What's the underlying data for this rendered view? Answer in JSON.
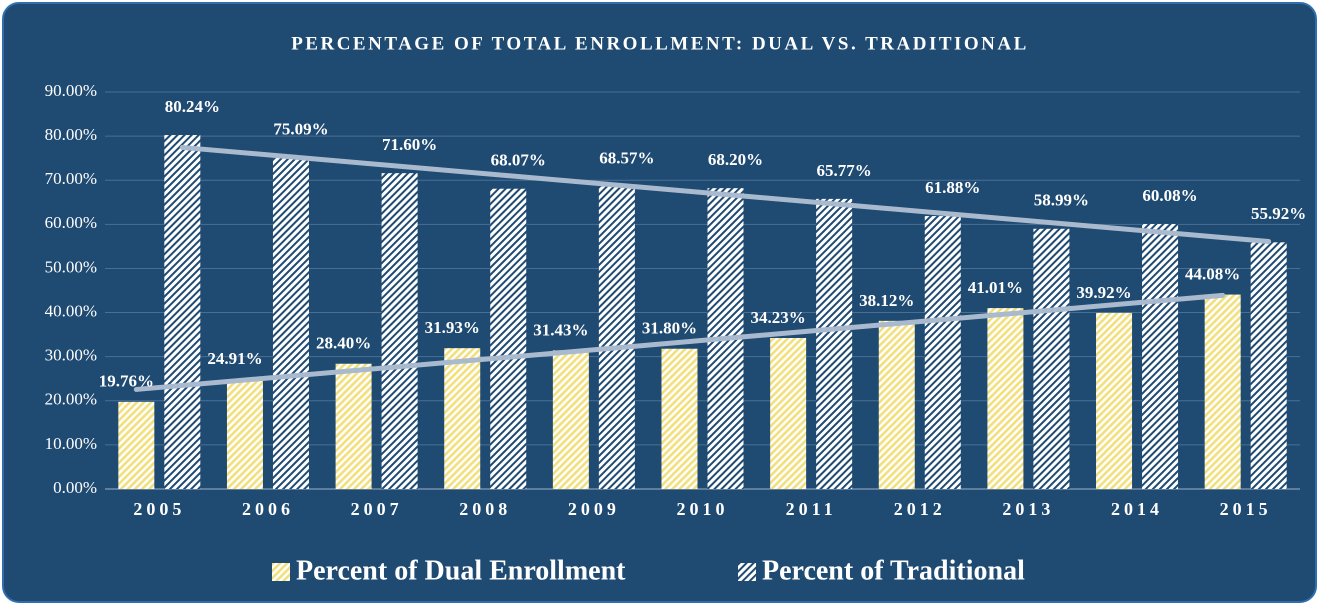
{
  "chart_data": {
    "type": "bar",
    "title": "PERCENTAGE OF TOTAL ENROLLMENT: DUAL VS. TRADITIONAL",
    "categories": [
      "2005",
      "2006",
      "2007",
      "2008",
      "2009",
      "2010",
      "2011",
      "2012",
      "2013",
      "2014",
      "2015"
    ],
    "series": [
      {
        "name": "Percent of Dual Enrollment",
        "color": "#f2df7e",
        "values": [
          19.76,
          24.91,
          28.4,
          31.93,
          31.43,
          31.8,
          34.23,
          38.12,
          41.01,
          39.92,
          44.08
        ],
        "value_labels": [
          "19.76%",
          "24.91%",
          "28.40%",
          "31.93%",
          "31.43%",
          "31.80%",
          "34.23%",
          "38.12%",
          "41.01%",
          "39.92%",
          "44.08%"
        ]
      },
      {
        "name": "Percent of Traditional",
        "color": "#ffffff",
        "values": [
          80.24,
          75.09,
          71.6,
          68.07,
          68.57,
          68.2,
          65.77,
          61.88,
          58.99,
          60.08,
          55.92
        ],
        "value_labels": [
          "80.24%",
          "75.09%",
          "71.60%",
          "68.07%",
          "68.57%",
          "68.20%",
          "65.77%",
          "61.88%",
          "58.99%",
          "60.08%",
          "55.92%"
        ]
      }
    ],
    "ylim": [
      0,
      90
    ],
    "yticks": [
      {
        "value": 0,
        "label": "0.00%"
      },
      {
        "value": 10,
        "label": "10.00%"
      },
      {
        "value": 20,
        "label": "20.00%"
      },
      {
        "value": 30,
        "label": "30.00%"
      },
      {
        "value": 40,
        "label": "40.00%"
      },
      {
        "value": 50,
        "label": "50.00%"
      },
      {
        "value": 60,
        "label": "60.00%"
      },
      {
        "value": 70,
        "label": "70.00%"
      },
      {
        "value": 80,
        "label": "80.00%"
      },
      {
        "value": 90,
        "label": "90.00%"
      }
    ],
    "grid": true,
    "trendline": true,
    "legend": "bottom"
  }
}
